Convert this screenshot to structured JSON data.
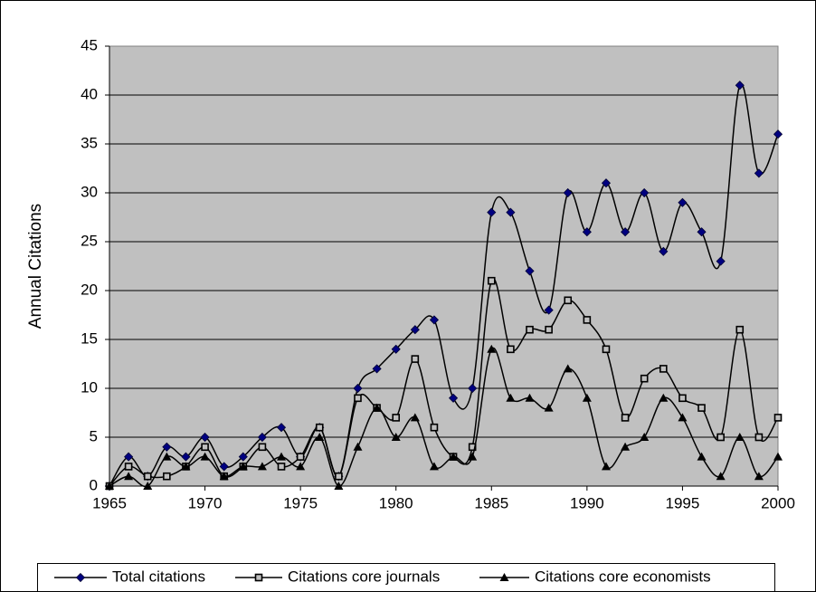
{
  "chart_data": {
    "type": "line",
    "ylabel": "Annual Citations",
    "x": [
      1965,
      1966,
      1967,
      1968,
      1969,
      1970,
      1971,
      1972,
      1973,
      1974,
      1975,
      1976,
      1977,
      1978,
      1979,
      1980,
      1981,
      1982,
      1983,
      1984,
      1985,
      1986,
      1987,
      1988,
      1989,
      1990,
      1991,
      1992,
      1993,
      1994,
      1995,
      1996,
      1997,
      1998,
      1999,
      2000
    ],
    "series": [
      {
        "name": "Total citations",
        "color": "#000080",
        "marker": "diamond",
        "values": [
          0,
          3,
          1,
          4,
          3,
          5,
          2,
          3,
          5,
          6,
          3,
          6,
          1,
          10,
          12,
          14,
          16,
          17,
          9,
          10,
          28,
          28,
          22,
          18,
          30,
          26,
          31,
          26,
          30,
          24,
          29,
          26,
          23,
          41,
          32,
          36
        ]
      },
      {
        "name": "Citations core journals",
        "color": "#000000",
        "marker": "square",
        "values": [
          0,
          2,
          1,
          1,
          2,
          4,
          1,
          2,
          4,
          2,
          3,
          6,
          1,
          9,
          8,
          7,
          13,
          6,
          3,
          4,
          21,
          14,
          16,
          16,
          19,
          17,
          14,
          7,
          11,
          12,
          9,
          8,
          5,
          16,
          5,
          7
        ]
      },
      {
        "name": "Citations core economists",
        "color": "#000000",
        "marker": "triangle",
        "values": [
          0,
          1,
          0,
          3,
          2,
          3,
          1,
          2,
          2,
          3,
          2,
          5,
          0,
          4,
          8,
          5,
          7,
          2,
          3,
          3,
          14,
          9,
          9,
          8,
          12,
          9,
          2,
          4,
          5,
          9,
          7,
          3,
          1,
          5,
          1,
          3
        ]
      }
    ],
    "xlim": [
      1965,
      2000
    ],
    "xticks": [
      1965,
      1970,
      1975,
      1980,
      1985,
      1990,
      1995,
      2000
    ],
    "ylim": [
      0,
      45
    ],
    "yticks": [
      0,
      5,
      10,
      15,
      20,
      25,
      30,
      35,
      40,
      45
    ],
    "grid": true,
    "smooth": true,
    "legend": "bottom"
  }
}
